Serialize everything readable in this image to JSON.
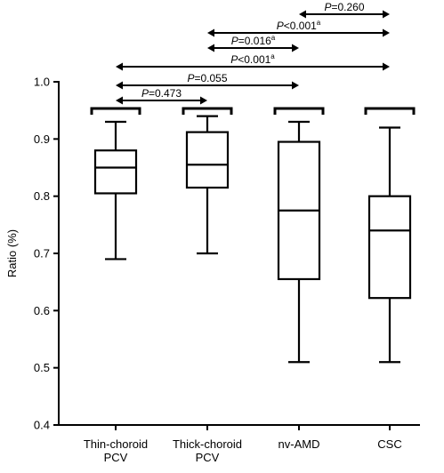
{
  "chart_data": {
    "type": "box",
    "ylabel": "Ratio (%)",
    "xlabel": "",
    "ylim": [
      0.4,
      1.0
    ],
    "yticks": [
      0.4,
      0.5,
      0.6,
      0.7,
      0.8,
      0.9,
      1.0
    ],
    "ytick_labels": [
      "0.4",
      "0.5",
      "0.6",
      "0.7",
      "0.8",
      "0.9",
      "1.0"
    ],
    "grid": false,
    "categories": [
      {
        "lines": [
          "Thin-choroid",
          "PCV"
        ]
      },
      {
        "lines": [
          "Thick-choroid",
          "PCV"
        ]
      },
      {
        "lines": [
          "nv-AMD"
        ]
      },
      {
        "lines": [
          "CSC"
        ]
      }
    ],
    "boxes": [
      {
        "min": 0.69,
        "q1": 0.805,
        "median": 0.85,
        "q3": 0.88,
        "max": 0.93
      },
      {
        "min": 0.7,
        "q1": 0.815,
        "median": 0.855,
        "q3": 0.912,
        "max": 0.94
      },
      {
        "min": 0.51,
        "q1": 0.655,
        "median": 0.775,
        "q3": 0.895,
        "max": 0.93
      },
      {
        "min": 0.51,
        "q1": 0.622,
        "median": 0.74,
        "q3": 0.8,
        "max": 0.92
      }
    ],
    "comparisons": [
      {
        "from": 0,
        "to": 1,
        "prefix": "P",
        "text": "=0.473",
        "sup": ""
      },
      {
        "from": 0,
        "to": 2,
        "prefix": "P",
        "text": "=0.055",
        "sup": ""
      },
      {
        "from": 0,
        "to": 3,
        "prefix": "P",
        "text": "<0.001",
        "sup": "a"
      },
      {
        "from": 1,
        "to": 2,
        "prefix": "P",
        "text": "=0.016",
        "sup": "a"
      },
      {
        "from": 1,
        "to": 3,
        "prefix": "P",
        "text": "<0.001",
        "sup": "a"
      },
      {
        "from": 2,
        "to": 3,
        "prefix": "P",
        "text": "=0.260",
        "sup": ""
      }
    ]
  }
}
